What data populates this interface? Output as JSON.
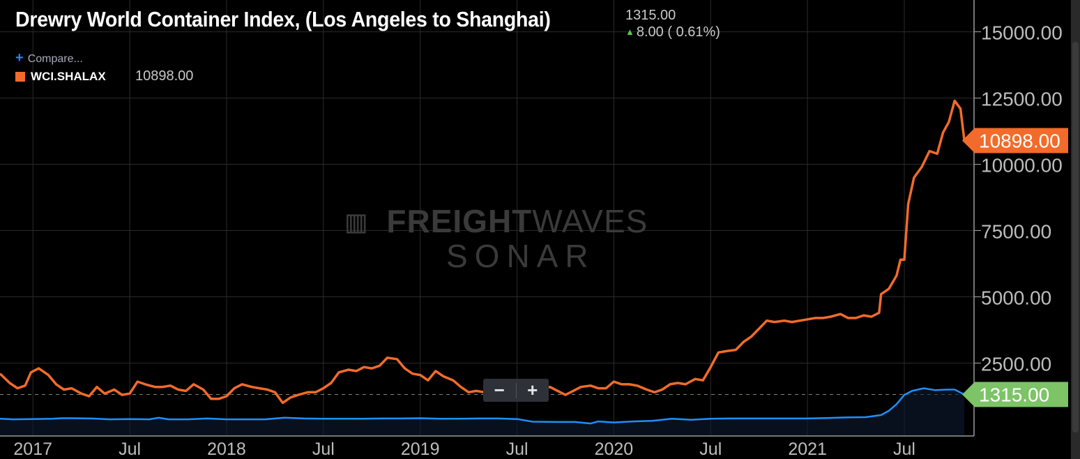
{
  "title": "Drewry World Container Index, (Los Angeles to Shanghai)",
  "header": {
    "value": "1315.00",
    "change": "8.00 ( 0.61%)"
  },
  "compare_label": "Compare...",
  "legend": {
    "name": "WCI.SHALAX",
    "value": "10898.00"
  },
  "watermark": {
    "line1_bold": "FREIGHT",
    "line1_light": "WAVES",
    "line2": "SONAR"
  },
  "zoom": {
    "minus": "−",
    "plus": "+"
  },
  "colors": {
    "orange": "#f26b2a",
    "blue": "#1e90ff",
    "green_tag": "#7cc466",
    "background": "#000000",
    "grid": "#2b2b2b"
  },
  "chart_data": {
    "type": "line",
    "y_axis_ticks": [
      "15000.00",
      "12500.00",
      "10000.00",
      "7500.00",
      "5000.00",
      "2500.00"
    ],
    "x_axis_ticks": [
      {
        "label": "2017",
        "x": 2017.0
      },
      {
        "label": "Jul",
        "x": 2017.5
      },
      {
        "label": "2018",
        "x": 2018.0
      },
      {
        "label": "Jul",
        "x": 2018.5
      },
      {
        "label": "2019",
        "x": 2019.0
      },
      {
        "label": "Jul",
        "x": 2019.5
      },
      {
        "label": "2020",
        "x": 2020.0
      },
      {
        "label": "Jul",
        "x": 2020.5
      },
      {
        "label": "2021",
        "x": 2021.0
      },
      {
        "label": "Jul",
        "x": 2021.5
      }
    ],
    "ylim": [
      -250,
      16200
    ],
    "xlim": [
      2016.83,
      2021.86
    ],
    "reference_line": 1315,
    "series": [
      {
        "name": "WCI.SHALAX",
        "color": "#f26b2a",
        "last_value_label": "10898.00",
        "points": [
          [
            2016.83,
            2100
          ],
          [
            2016.88,
            1750
          ],
          [
            2016.92,
            1550
          ],
          [
            2016.96,
            1650
          ],
          [
            2016.99,
            2150
          ],
          [
            2017.03,
            2300
          ],
          [
            2017.08,
            2050
          ],
          [
            2017.12,
            1700
          ],
          [
            2017.16,
            1500
          ],
          [
            2017.2,
            1550
          ],
          [
            2017.25,
            1350
          ],
          [
            2017.29,
            1250
          ],
          [
            2017.33,
            1600
          ],
          [
            2017.37,
            1350
          ],
          [
            2017.42,
            1500
          ],
          [
            2017.46,
            1300
          ],
          [
            2017.5,
            1350
          ],
          [
            2017.54,
            1800
          ],
          [
            2017.58,
            1700
          ],
          [
            2017.63,
            1600
          ],
          [
            2017.67,
            1600
          ],
          [
            2017.71,
            1650
          ],
          [
            2017.75,
            1500
          ],
          [
            2017.79,
            1450
          ],
          [
            2017.83,
            1700
          ],
          [
            2017.88,
            1500
          ],
          [
            2017.92,
            1150
          ],
          [
            2017.96,
            1150
          ],
          [
            2018.0,
            1250
          ],
          [
            2018.04,
            1550
          ],
          [
            2018.08,
            1700
          ],
          [
            2018.13,
            1600
          ],
          [
            2018.17,
            1550
          ],
          [
            2018.21,
            1500
          ],
          [
            2018.25,
            1400
          ],
          [
            2018.29,
            1000
          ],
          [
            2018.33,
            1200
          ],
          [
            2018.37,
            1300
          ],
          [
            2018.42,
            1400
          ],
          [
            2018.46,
            1400
          ],
          [
            2018.5,
            1550
          ],
          [
            2018.54,
            1750
          ],
          [
            2018.58,
            2150
          ],
          [
            2018.63,
            2250
          ],
          [
            2018.67,
            2200
          ],
          [
            2018.71,
            2350
          ],
          [
            2018.75,
            2300
          ],
          [
            2018.79,
            2400
          ],
          [
            2018.83,
            2700
          ],
          [
            2018.88,
            2650
          ],
          [
            2018.92,
            2300
          ],
          [
            2018.96,
            2100
          ],
          [
            2019.0,
            2050
          ],
          [
            2019.04,
            1850
          ],
          [
            2019.08,
            2200
          ],
          [
            2019.12,
            2000
          ],
          [
            2019.17,
            1850
          ],
          [
            2019.21,
            1600
          ],
          [
            2019.25,
            1400
          ],
          [
            2019.29,
            1450
          ],
          [
            2019.33,
            1400
          ],
          [
            2019.37,
            1550
          ],
          [
            2019.42,
            1500
          ],
          [
            2019.46,
            1550
          ],
          [
            2019.5,
            1500
          ],
          [
            2019.54,
            1450
          ],
          [
            2019.58,
            1400
          ],
          [
            2019.62,
            1500
          ],
          [
            2019.67,
            1600
          ],
          [
            2019.71,
            1450
          ],
          [
            2019.75,
            1300
          ],
          [
            2019.79,
            1450
          ],
          [
            2019.83,
            1600
          ],
          [
            2019.88,
            1650
          ],
          [
            2019.92,
            1550
          ],
          [
            2019.96,
            1550
          ],
          [
            2020.0,
            1800
          ],
          [
            2020.04,
            1700
          ],
          [
            2020.08,
            1700
          ],
          [
            2020.12,
            1650
          ],
          [
            2020.17,
            1500
          ],
          [
            2020.21,
            1400
          ],
          [
            2020.25,
            1500
          ],
          [
            2020.29,
            1700
          ],
          [
            2020.33,
            1750
          ],
          [
            2020.37,
            1700
          ],
          [
            2020.42,
            1900
          ],
          [
            2020.46,
            1850
          ],
          [
            2020.5,
            2350
          ],
          [
            2020.54,
            2900
          ],
          [
            2020.58,
            2950
          ],
          [
            2020.63,
            3000
          ],
          [
            2020.67,
            3300
          ],
          [
            2020.71,
            3500
          ],
          [
            2020.75,
            3800
          ],
          [
            2020.79,
            4100
          ],
          [
            2020.83,
            4050
          ],
          [
            2020.88,
            4100
          ],
          [
            2020.92,
            4050
          ],
          [
            2020.96,
            4100
          ],
          [
            2021.0,
            4150
          ],
          [
            2021.04,
            4200
          ],
          [
            2021.08,
            4200
          ],
          [
            2021.12,
            4250
          ],
          [
            2021.17,
            4350
          ],
          [
            2021.21,
            4200
          ],
          [
            2021.25,
            4200
          ],
          [
            2021.29,
            4300
          ],
          [
            2021.33,
            4250
          ],
          [
            2021.37,
            4400
          ],
          [
            2021.38,
            5100
          ],
          [
            2021.42,
            5300
          ],
          [
            2021.46,
            5800
          ],
          [
            2021.48,
            6400
          ],
          [
            2021.5,
            6400
          ],
          [
            2021.52,
            8500
          ],
          [
            2021.55,
            9500
          ],
          [
            2021.59,
            9900
          ],
          [
            2021.63,
            10500
          ],
          [
            2021.67,
            10400
          ],
          [
            2021.7,
            11200
          ],
          [
            2021.73,
            11600
          ],
          [
            2021.76,
            12400
          ],
          [
            2021.79,
            12100
          ],
          [
            2021.81,
            10898
          ]
        ]
      },
      {
        "name": "",
        "color": "#1e90ff",
        "last_value_label": "1315.00",
        "points": [
          [
            2016.83,
            400
          ],
          [
            2016.9,
            380
          ],
          [
            2017.0,
            390
          ],
          [
            2017.1,
            400
          ],
          [
            2017.15,
            420
          ],
          [
            2017.2,
            420
          ],
          [
            2017.3,
            410
          ],
          [
            2017.4,
            380
          ],
          [
            2017.5,
            390
          ],
          [
            2017.6,
            380
          ],
          [
            2017.65,
            440
          ],
          [
            2017.7,
            380
          ],
          [
            2017.8,
            380
          ],
          [
            2017.9,
            410
          ],
          [
            2018.0,
            380
          ],
          [
            2018.1,
            380
          ],
          [
            2018.2,
            380
          ],
          [
            2018.3,
            440
          ],
          [
            2018.4,
            410
          ],
          [
            2018.5,
            400
          ],
          [
            2018.6,
            400
          ],
          [
            2018.7,
            400
          ],
          [
            2018.8,
            410
          ],
          [
            2018.9,
            410
          ],
          [
            2019.0,
            420
          ],
          [
            2019.1,
            400
          ],
          [
            2019.2,
            400
          ],
          [
            2019.3,
            410
          ],
          [
            2019.4,
            410
          ],
          [
            2019.5,
            390
          ],
          [
            2019.58,
            290
          ],
          [
            2019.7,
            280
          ],
          [
            2019.8,
            280
          ],
          [
            2019.88,
            220
          ],
          [
            2019.92,
            300
          ],
          [
            2020.0,
            260
          ],
          [
            2020.1,
            300
          ],
          [
            2020.2,
            320
          ],
          [
            2020.3,
            400
          ],
          [
            2020.4,
            360
          ],
          [
            2020.5,
            400
          ],
          [
            2020.6,
            410
          ],
          [
            2020.7,
            410
          ],
          [
            2020.8,
            410
          ],
          [
            2020.9,
            410
          ],
          [
            2021.0,
            410
          ],
          [
            2021.1,
            430
          ],
          [
            2021.2,
            450
          ],
          [
            2021.3,
            460
          ],
          [
            2021.38,
            540
          ],
          [
            2021.42,
            700
          ],
          [
            2021.46,
            950
          ],
          [
            2021.5,
            1300
          ],
          [
            2021.54,
            1450
          ],
          [
            2021.6,
            1550
          ],
          [
            2021.66,
            1480
          ],
          [
            2021.72,
            1500
          ],
          [
            2021.76,
            1500
          ],
          [
            2021.81,
            1315
          ]
        ]
      }
    ]
  }
}
